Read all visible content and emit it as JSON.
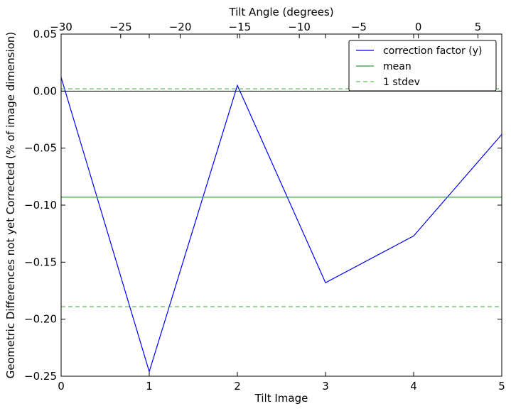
{
  "chart_data": {
    "type": "line",
    "xlabel": "Tilt Image",
    "ylabel": "Geometric Differences not yet Corrected (% of image dimension)",
    "top_xlabel": "Tilt Angle (degrees)",
    "xlim": [
      0,
      5
    ],
    "ylim": [
      -0.25,
      0.05
    ],
    "top_xlim": [
      -30,
      7
    ],
    "x_ticks": [
      0,
      1,
      2,
      3,
      4,
      5
    ],
    "x_tick_labels": [
      "0",
      "1",
      "2",
      "3",
      "4",
      "5"
    ],
    "y_ticks": [
      -0.25,
      -0.2,
      -0.15,
      -0.1,
      -0.05,
      0.0,
      0.05
    ],
    "y_tick_labels": [
      "−0.25",
      "−0.20",
      "−0.15",
      "−0.10",
      "−0.05",
      "0.00",
      "0.05"
    ],
    "top_ticks": [
      -30,
      -25,
      -20,
      -15,
      -10,
      -5,
      0,
      5
    ],
    "top_tick_labels": [
      "−30",
      "−25",
      "−20",
      "−15",
      "−10",
      "−5",
      "0",
      "5"
    ],
    "grid": false,
    "legend_position": "top-right",
    "zero_line": 0.0,
    "series": [
      {
        "name": "correction factor (y)",
        "color": "#0000ff",
        "style": "solid",
        "x": [
          0,
          1,
          2,
          3,
          4,
          5
        ],
        "values": [
          0.012,
          -0.246,
          0.005,
          -0.168,
          -0.127,
          -0.038
        ]
      },
      {
        "name": "mean",
        "color": "#339933",
        "style": "solid",
        "constant": -0.093
      },
      {
        "name": "1 stdev",
        "color": "#66bb66",
        "style": "dashed",
        "constants": [
          0.002,
          -0.189
        ]
      }
    ]
  }
}
